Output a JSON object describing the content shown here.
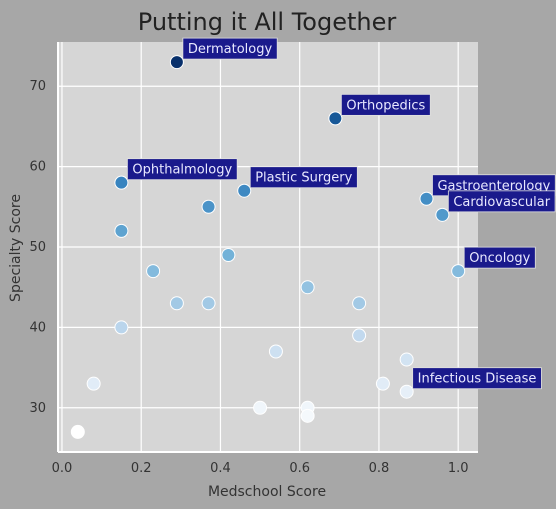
{
  "chart_data": {
    "type": "scatter",
    "title": "Putting it All Together",
    "xlabel": "Medschool Score",
    "ylabel": "Specialty Score",
    "xlim": [
      -0.01,
      1.05
    ],
    "ylim": [
      24.5,
      75.5
    ],
    "xticks": [
      0.0,
      0.2,
      0.4,
      0.6,
      0.8,
      1.0
    ],
    "xtick_labels": [
      "0.0",
      "0.2",
      "0.4",
      "0.6",
      "0.8",
      "1.0"
    ],
    "yticks": [
      30,
      40,
      50,
      60,
      70
    ],
    "ytick_labels": [
      "30",
      "40",
      "50",
      "60",
      "70"
    ],
    "grid": true,
    "colormap": "Blues",
    "colors": {
      "page_background": "#a7a7a7",
      "plot_background": "#d6d6d6",
      "gridline": "#ffffff",
      "annotation_box": "#1a1a8c",
      "annotation_text": "#e8e8ff",
      "point_edge": "#ffffff"
    },
    "points": [
      {
        "x": 0.29,
        "y": 73
      },
      {
        "x": 0.69,
        "y": 66
      },
      {
        "x": 0.15,
        "y": 58
      },
      {
        "x": 0.46,
        "y": 57
      },
      {
        "x": 0.92,
        "y": 56
      },
      {
        "x": 0.96,
        "y": 54
      },
      {
        "x": 0.37,
        "y": 55
      },
      {
        "x": 0.15,
        "y": 52
      },
      {
        "x": 0.42,
        "y": 49
      },
      {
        "x": 1.0,
        "y": 47
      },
      {
        "x": 0.23,
        "y": 47
      },
      {
        "x": 0.62,
        "y": 45
      },
      {
        "x": 0.29,
        "y": 43
      },
      {
        "x": 0.37,
        "y": 43
      },
      {
        "x": 0.75,
        "y": 43
      },
      {
        "x": 0.15,
        "y": 40
      },
      {
        "x": 0.75,
        "y": 39
      },
      {
        "x": 0.54,
        "y": 37
      },
      {
        "x": 0.87,
        "y": 36
      },
      {
        "x": 0.08,
        "y": 33
      },
      {
        "x": 0.81,
        "y": 33
      },
      {
        "x": 0.87,
        "y": 32
      },
      {
        "x": 0.5,
        "y": 30
      },
      {
        "x": 0.62,
        "y": 30
      },
      {
        "x": 0.62,
        "y": 29
      },
      {
        "x": 0.04,
        "y": 27
      }
    ],
    "annotations": [
      {
        "label": "Dermatology",
        "x": 0.29,
        "y": 73
      },
      {
        "label": "Orthopedics",
        "x": 0.69,
        "y": 66
      },
      {
        "label": "Ophthalmology",
        "x": 0.15,
        "y": 58
      },
      {
        "label": "Plastic Surgery",
        "x": 0.46,
        "y": 57
      },
      {
        "label": "Gastroenterology",
        "x": 0.92,
        "y": 56
      },
      {
        "label": "Cardiovascular",
        "x": 0.96,
        "y": 54
      },
      {
        "label": "Oncology",
        "x": 1.0,
        "y": 47
      },
      {
        "label": "Infectious Disease",
        "x": 0.87,
        "y": 32
      }
    ]
  }
}
